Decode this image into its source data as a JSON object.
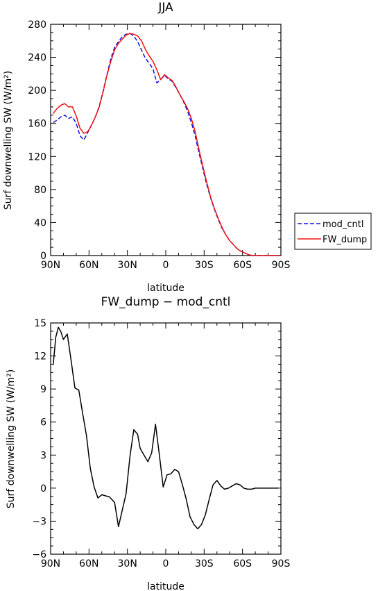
{
  "chart_data": [
    {
      "type": "line",
      "title": "JJA",
      "xlabel": "latitude",
      "ylabel": "Surf downwelling SW (W/m²)",
      "xlim": [
        90,
        -90
      ],
      "ylim": [
        0,
        280
      ],
      "x_ticks": [
        "90N",
        "60N",
        "30N",
        "0",
        "30S",
        "60S",
        "90S"
      ],
      "x_tick_values": [
        90,
        60,
        30,
        0,
        -30,
        -60,
        -90
      ],
      "y_ticks": [
        "0",
        "40",
        "80",
        "120",
        "160",
        "200",
        "240",
        "280"
      ],
      "y_tick_values": [
        0,
        40,
        80,
        120,
        160,
        200,
        240,
        280
      ],
      "legend": "right",
      "series": [
        {
          "name": "mod_cntl",
          "color": "#1010e0",
          "dash": "dashed",
          "x": [
            88,
            85,
            82,
            79,
            76,
            73,
            70,
            67,
            64,
            61,
            58,
            55,
            52,
            49,
            46,
            43,
            40,
            37,
            34,
            31,
            28,
            25,
            22,
            19,
            16,
            13,
            10,
            7,
            4,
            1,
            -2,
            -5,
            -8,
            -11,
            -14,
            -17,
            -20,
            -23,
            -26,
            -29,
            -32,
            -35,
            -38,
            -41,
            -44,
            -47,
            -50,
            -53,
            -56,
            -59,
            -62,
            -65,
            -68,
            -71,
            -74,
            -77,
            -80,
            -83,
            -86,
            -89
          ],
          "y": [
            161,
            164,
            168,
            170,
            166,
            168,
            160,
            145,
            140,
            149,
            158,
            168,
            181,
            199,
            219,
            238,
            252,
            259,
            265,
            268,
            269,
            266,
            259,
            249,
            239,
            233,
            226,
            209,
            213,
            218,
            214,
            211,
            203,
            195,
            186,
            175,
            161,
            145,
            124,
            105,
            86,
            70,
            56,
            44,
            33,
            25,
            18,
            13,
            8,
            5,
            3,
            1,
            0,
            0,
            0,
            0,
            0,
            0,
            0,
            0
          ]
        },
        {
          "name": "FW_dump",
          "color": "#ee1111",
          "dash": "solid",
          "x": [
            88,
            85,
            82,
            79,
            76,
            73,
            70,
            67,
            64,
            61,
            58,
            55,
            52,
            49,
            46,
            43,
            40,
            37,
            34,
            31,
            28,
            25,
            22,
            19,
            16,
            13,
            10,
            7,
            4,
            1,
            -2,
            -5,
            -8,
            -11,
            -14,
            -17,
            -20,
            -23,
            -26,
            -29,
            -32,
            -35,
            -38,
            -41,
            -44,
            -47,
            -50,
            -53,
            -56,
            -59,
            -62,
            -65,
            -68,
            -71,
            -74,
            -77,
            -80,
            -83,
            -86,
            -89
          ],
          "y": [
            172,
            178,
            182,
            184,
            180,
            180,
            169,
            154,
            148,
            150,
            158,
            168,
            180,
            198,
            218,
            235,
            249,
            257,
            262,
            267,
            269,
            268,
            266,
            260,
            250,
            242,
            235,
            225,
            213,
            219,
            215,
            212,
            204,
            195,
            187,
            178,
            166,
            150,
            128,
            108,
            89,
            71,
            57,
            45,
            34,
            25,
            18,
            13,
            8,
            5,
            3,
            1,
            0,
            0,
            0,
            0,
            0,
            0,
            0,
            0
          ]
        }
      ]
    },
    {
      "type": "line",
      "title": "FW_dump − mod_cntl",
      "xlabel": "latitude",
      "ylabel": "Surf downwelling SW (W/m²)",
      "xlim": [
        90,
        -90
      ],
      "ylim": [
        -6,
        15
      ],
      "x_ticks": [
        "90N",
        "60N",
        "30N",
        "0",
        "30S",
        "60S",
        "90S"
      ],
      "x_tick_values": [
        90,
        60,
        30,
        0,
        -30,
        -60,
        -90
      ],
      "y_ticks": [
        "−6",
        "−3",
        "0",
        "3",
        "6",
        "9",
        "12",
        "15"
      ],
      "y_tick_values": [
        -6,
        -3,
        0,
        3,
        6,
        9,
        12,
        15
      ],
      "series": [
        {
          "color": "#000000",
          "dash": "solid",
          "x": [
            88,
            86,
            84,
            82,
            80,
            77,
            74,
            71,
            68,
            65,
            62,
            59,
            56,
            53,
            50,
            47,
            44,
            40,
            37,
            34,
            31,
            28,
            25,
            22,
            20,
            17,
            14,
            11,
            8,
            5,
            2,
            -1,
            -4,
            -7,
            -10,
            -13,
            -16,
            -19,
            -22,
            -25,
            -28,
            -31,
            -34,
            -37,
            -40,
            -43,
            -46,
            -49,
            -52,
            -55,
            -58,
            -61,
            -64,
            -67,
            -70,
            -73,
            -76,
            -79,
            -82,
            -85,
            -88
          ],
          "y": [
            11.2,
            13.7,
            14.6,
            14.2,
            13.5,
            14.0,
            11.6,
            9.1,
            8.9,
            6.8,
            4.8,
            1.8,
            0.1,
            -0.9,
            -0.6,
            -0.7,
            -0.8,
            -1.3,
            -3.5,
            -2.0,
            -0.5,
            2.9,
            5.3,
            4.9,
            3.6,
            3.0,
            2.4,
            3.2,
            5.8,
            3.0,
            0.1,
            1.2,
            1.3,
            1.7,
            1.5,
            0.3,
            -1.0,
            -2.6,
            -3.3,
            -3.7,
            -3.3,
            -2.4,
            -1.0,
            0.3,
            0.7,
            0.2,
            -0.1,
            0.0,
            0.2,
            0.4,
            0.3,
            0.0,
            -0.1,
            -0.1,
            0.0,
            0.0,
            0.0,
            0.0,
            0.0,
            0.0,
            0.0
          ]
        }
      ]
    }
  ]
}
